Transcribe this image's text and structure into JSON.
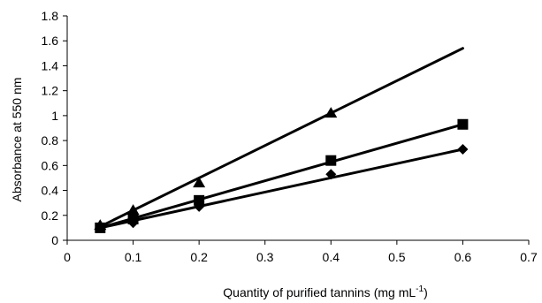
{
  "chart_data": {
    "type": "scatter",
    "title": "",
    "xlabel": {
      "main": "Quantity of purified tannins (mg mL",
      "sup": "-1",
      "end": ")"
    },
    "ylabel": "Absorbance at 550 nm",
    "xlim": [
      0,
      0.7
    ],
    "ylim": [
      0,
      1.8
    ],
    "xticks": [
      "0",
      "0.1",
      "0.2",
      "0.3",
      "0.4",
      "0.5",
      "0.6",
      "0.7"
    ],
    "yticks": [
      "0",
      "0.2",
      "0.4",
      "0.6",
      "0.8",
      "1",
      "1.2",
      "1.4",
      "1.6",
      "1.8"
    ],
    "grid": false,
    "legend": "none",
    "series": [
      {
        "marker": "triangle",
        "points": [
          [
            0.05,
            0.12
          ],
          [
            0.1,
            0.24
          ],
          [
            0.2,
            0.46
          ],
          [
            0.4,
            1.02
          ]
        ],
        "fit": [
          [
            0.05,
            0.11
          ],
          [
            0.6,
            1.54
          ]
        ]
      },
      {
        "marker": "square",
        "points": [
          [
            0.05,
            0.1
          ],
          [
            0.1,
            0.17
          ],
          [
            0.2,
            0.32
          ],
          [
            0.4,
            0.64
          ],
          [
            0.6,
            0.93
          ]
        ],
        "fit": [
          [
            0.05,
            0.1
          ],
          [
            0.6,
            0.93
          ]
        ]
      },
      {
        "marker": "diamond",
        "points": [
          [
            0.05,
            0.1
          ],
          [
            0.1,
            0.14
          ],
          [
            0.2,
            0.27
          ],
          [
            0.4,
            0.53
          ],
          [
            0.6,
            0.73
          ]
        ],
        "fit": [
          [
            0.05,
            0.1
          ],
          [
            0.6,
            0.73
          ]
        ]
      }
    ]
  }
}
